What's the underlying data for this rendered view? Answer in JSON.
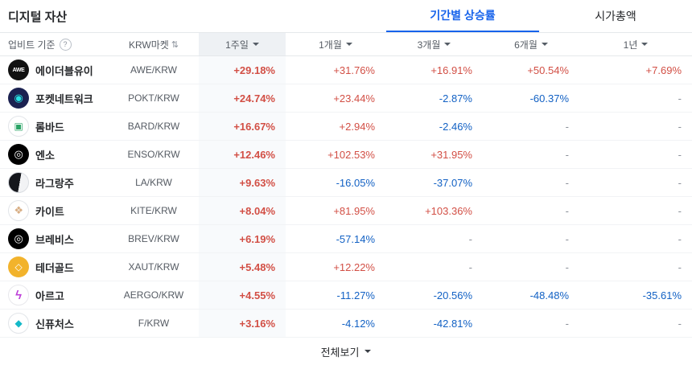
{
  "colors": {
    "up": "#d24f45",
    "down": "#1261c4",
    "accent": "#1763eb",
    "weekHeadBg": "#eef1f4",
    "weekBg": "#f8fafc"
  },
  "icons": {
    "help": "?",
    "sort": "⇅"
  },
  "header": {
    "title": "디지털 자산",
    "tabs": [
      {
        "label": "기간별 상승률",
        "active": true
      },
      {
        "label": "시가총액",
        "active": false
      }
    ]
  },
  "table": {
    "columns": {
      "name": "업비트 기준",
      "market": "KRW마켓",
      "periods": [
        "1주일",
        "1개월",
        "3개월",
        "6개월",
        "1년"
      ]
    },
    "rows": [
      {
        "name": "에이더블유이",
        "market": "AWE/KRW",
        "icon": {
          "bg": "#111111",
          "fg": "#ffffff",
          "glyph": "AWE",
          "size": 7
        },
        "values": [
          "+29.18%",
          "+31.76%",
          "+16.91%",
          "+50.54%",
          "+7.69%"
        ]
      },
      {
        "name": "포켓네트워크",
        "market": "POKT/KRW",
        "icon": {
          "bg": "#1b2150",
          "fg": "#27e2e2",
          "glyph": "◉",
          "size": 13
        },
        "values": [
          "+24.74%",
          "+23.44%",
          "-2.87%",
          "-60.37%",
          "-"
        ]
      },
      {
        "name": "롬바드",
        "market": "BARD/KRW",
        "icon": {
          "bg": "#ffffff",
          "fg": "#2aa466",
          "glyph": "▣",
          "size": 12,
          "border": "#e2e5e9"
        },
        "values": [
          "+16.67%",
          "+2.94%",
          "-2.46%",
          "-",
          "-"
        ]
      },
      {
        "name": "엔소",
        "market": "ENSO/KRW",
        "icon": {
          "bg": "#000000",
          "fg": "#ffffff",
          "glyph": "◎",
          "size": 13
        },
        "values": [
          "+12.46%",
          "+102.53%",
          "+31.95%",
          "-",
          "-"
        ]
      },
      {
        "name": "라그랑주",
        "market": "LA/KRW",
        "icon": {
          "bg": "linear-gradient(100deg,#15171c 55%,#f2f3f5 55%)",
          "fg": "#ffffff",
          "glyph": "",
          "size": 11,
          "border": "#dadde2"
        },
        "values": [
          "+9.63%",
          "-16.05%",
          "-37.07%",
          "-",
          "-"
        ]
      },
      {
        "name": "카이트",
        "market": "KITE/KRW",
        "icon": {
          "bg": "#ffffff",
          "fg": "#d7ad83",
          "glyph": "❖",
          "size": 13,
          "border": "#e2e5e9"
        },
        "values": [
          "+8.04%",
          "+81.95%",
          "+103.36%",
          "-",
          "-"
        ]
      },
      {
        "name": "브레비스",
        "market": "BREV/KRW",
        "icon": {
          "bg": "#000000",
          "fg": "#ffffff",
          "glyph": "◎",
          "size": 13
        },
        "values": [
          "+6.19%",
          "-57.14%",
          "-",
          "-",
          "-"
        ]
      },
      {
        "name": "테더골드",
        "market": "XAUT/KRW",
        "icon": {
          "bg": "#f2b32c",
          "fg": "#ffffff",
          "glyph": "◇",
          "size": 12
        },
        "values": [
          "+5.48%",
          "+12.22%",
          "-",
          "-",
          "-"
        ]
      },
      {
        "name": "아르고",
        "market": "AERGO/KRW",
        "icon": {
          "bg": "#ffffff",
          "fg": "#bd3fd8",
          "glyph": "ϟ",
          "size": 15,
          "border": "#e8e8ec"
        },
        "values": [
          "+4.55%",
          "-11.27%",
          "-20.56%",
          "-48.48%",
          "-35.61%"
        ]
      },
      {
        "name": "신퓨처스",
        "market": "F/KRW",
        "icon": {
          "bg": "#ffffff",
          "fg": "#14b9c8",
          "glyph": "◆",
          "size": 12,
          "border": "#e2e5e9"
        },
        "values": [
          "+3.16%",
          "-4.12%",
          "-42.81%",
          "-",
          "-"
        ]
      }
    ]
  },
  "footer": {
    "view_all": "전체보기"
  }
}
